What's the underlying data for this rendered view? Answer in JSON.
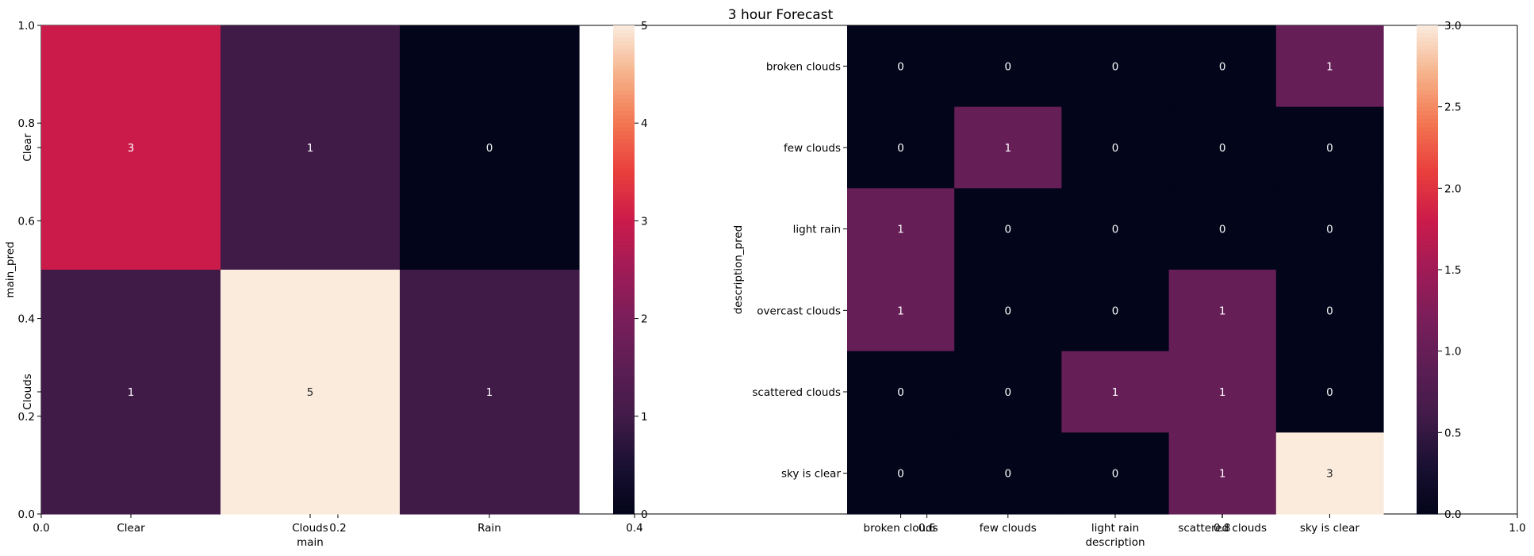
{
  "title": "3 hour Forecast",
  "background_axes": {
    "left": {
      "xticks": [
        "0.0",
        "0.2",
        "0.4"
      ],
      "yticks": [
        "0.0",
        "0.2",
        "0.4",
        "0.6",
        "0.8",
        "1.0"
      ]
    },
    "right": {
      "xticks": [
        "0.6",
        "0.8",
        "1.0"
      ]
    }
  },
  "chart_data": [
    {
      "type": "heatmap",
      "xlabel": "main",
      "ylabel": "main_pred",
      "x_categories": [
        "Clear",
        "Clouds",
        "Rain"
      ],
      "y_categories": [
        "Clear",
        "Clouds"
      ],
      "values": [
        [
          3,
          1,
          0
        ],
        [
          1,
          5,
          1
        ]
      ],
      "colorbar": {
        "min": 0,
        "max": 5,
        "ticks": [
          "0",
          "1",
          "2",
          "3",
          "4",
          "5"
        ]
      },
      "colormap": "rocket",
      "annotated": true
    },
    {
      "type": "heatmap",
      "xlabel": "description",
      "ylabel": "description_pred",
      "x_categories": [
        "broken clouds",
        "few clouds",
        "light rain",
        "scattered clouds",
        "sky is clear"
      ],
      "y_categories": [
        "broken clouds",
        "few clouds",
        "light rain",
        "overcast clouds",
        "scattered clouds",
        "sky is clear"
      ],
      "values": [
        [
          0,
          0,
          0,
          0,
          1
        ],
        [
          0,
          1,
          0,
          0,
          0
        ],
        [
          1,
          0,
          0,
          0,
          0
        ],
        [
          1,
          0,
          0,
          1,
          0
        ],
        [
          0,
          0,
          1,
          1,
          0
        ],
        [
          0,
          0,
          0,
          1,
          3
        ]
      ],
      "colorbar": {
        "min": 0,
        "max": 3,
        "ticks": [
          "0.0",
          "0.5",
          "1.0",
          "1.5",
          "2.0",
          "2.5",
          "3.0"
        ]
      },
      "colormap": "rocket",
      "annotated": true
    }
  ]
}
